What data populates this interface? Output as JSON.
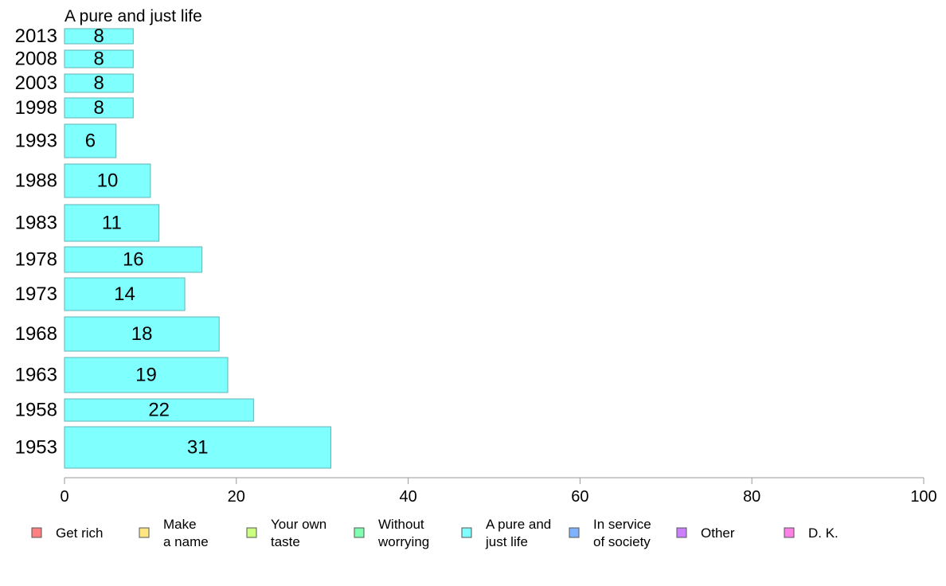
{
  "chart_data": {
    "type": "bar",
    "orientation": "horizontal",
    "title": "A pure and just life",
    "xlabel": "",
    "ylabel": "",
    "xlim": [
      0,
      100
    ],
    "x_ticks": [
      0,
      20,
      40,
      60,
      80,
      100
    ],
    "grid": false,
    "legend_position": "bottom",
    "categories": [
      "2013",
      "2008",
      "2003",
      "1998",
      "1993",
      "1988",
      "1983",
      "1978",
      "1973",
      "1968",
      "1963",
      "1958",
      "1953"
    ],
    "series": [
      {
        "name": "A pure and just life",
        "color": "#80ffff",
        "values": [
          8,
          8,
          8,
          8,
          6,
          10,
          11,
          16,
          14,
          18,
          19,
          22,
          31
        ]
      }
    ],
    "legend": [
      {
        "label": "Get rich",
        "color": "#ff8080"
      },
      {
        "label": "Make\na name",
        "color": "#ffe680"
      },
      {
        "label": "Your own\ntaste",
        "color": "#ccff80"
      },
      {
        "label": "Without\nworrying",
        "color": "#80ffb3"
      },
      {
        "label": "A pure and\njust life",
        "color": "#80ffff"
      },
      {
        "label": "In service\nof society",
        "color": "#80b3ff"
      },
      {
        "label": "Other",
        "color": "#cc80ff"
      },
      {
        "label": "D. K.",
        "color": "#ff80e6"
      }
    ]
  }
}
